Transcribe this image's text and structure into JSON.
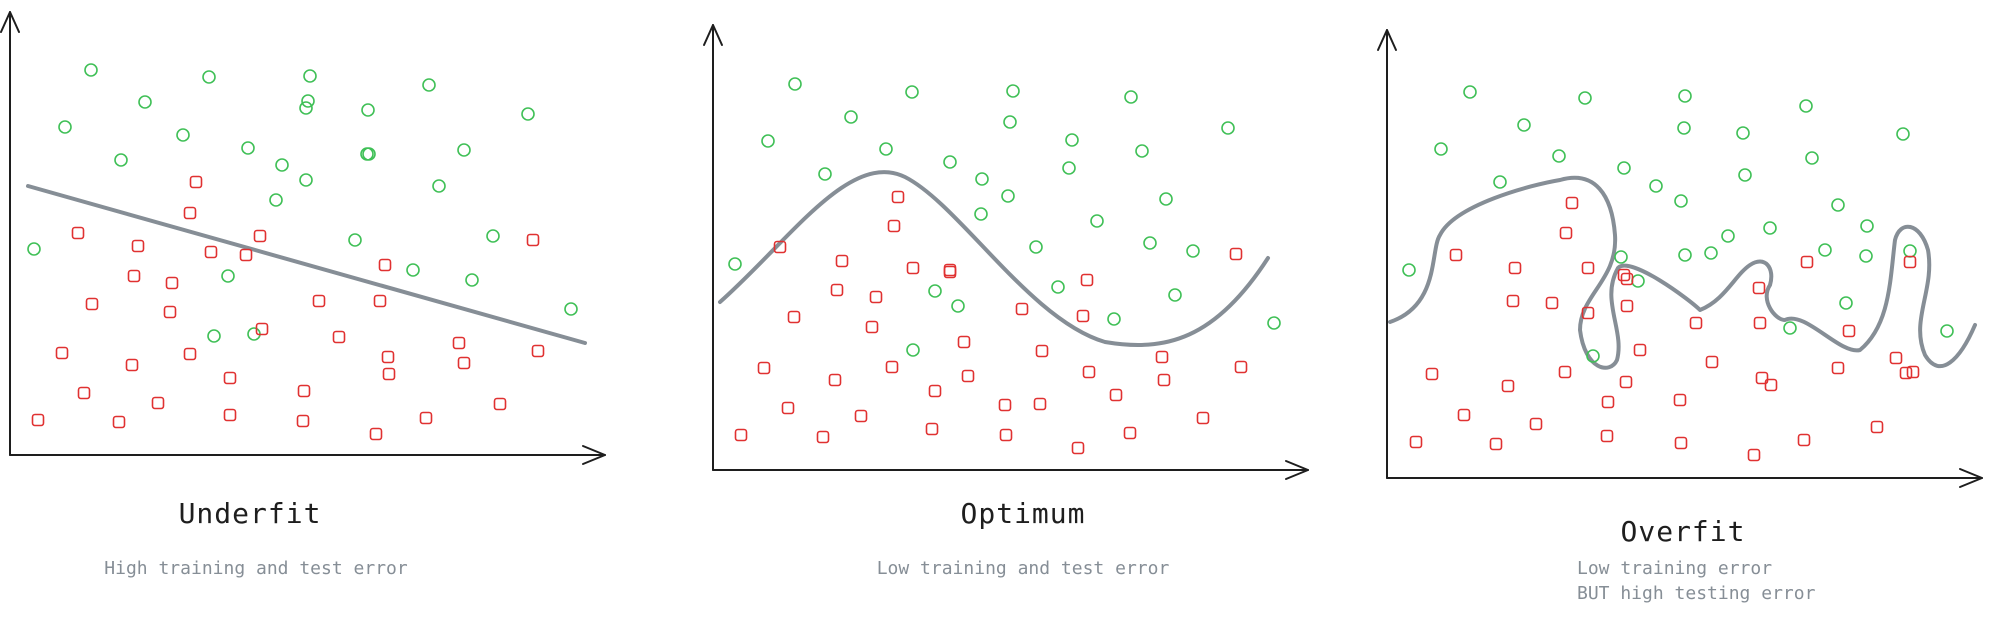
{
  "colors": {
    "axis": "#1e1e1e",
    "boundary": "#868e96",
    "class_a": "#40c057",
    "class_b": "#e03131",
    "title": "#1e1e1e",
    "caption": "#868e96"
  },
  "panels": [
    {
      "id": "underfit",
      "title": "Underfit",
      "caption_lines": [
        "High training and test error"
      ],
      "class_a_points": [
        [
          91,
          70
        ],
        [
          145,
          102
        ],
        [
          209,
          77
        ],
        [
          310,
          76
        ],
        [
          65,
          127
        ],
        [
          121,
          160
        ],
        [
          183,
          135
        ],
        [
          248,
          148
        ],
        [
          282,
          165
        ],
        [
          306,
          108
        ],
        [
          368,
          110
        ],
        [
          429,
          85
        ],
        [
          439,
          186
        ],
        [
          464,
          150
        ],
        [
          493,
          236
        ],
        [
          306,
          180
        ],
        [
          276,
          200
        ],
        [
          228,
          276
        ],
        [
          34,
          249
        ],
        [
          254,
          334
        ],
        [
          413,
          270
        ],
        [
          355,
          240
        ],
        [
          472,
          280
        ],
        [
          369,
          154
        ],
        [
          528,
          114
        ],
        [
          571,
          309
        ],
        [
          308,
          101
        ],
        [
          214,
          336
        ],
        [
          367,
          154
        ]
      ],
      "class_b_points": [
        [
          78,
          233
        ],
        [
          138,
          246
        ],
        [
          190,
          213
        ],
        [
          134,
          276
        ],
        [
          172,
          283
        ],
        [
          211,
          252
        ],
        [
          92,
          304
        ],
        [
          260,
          236
        ],
        [
          170,
          312
        ],
        [
          246,
          255
        ],
        [
          533,
          240
        ],
        [
          385,
          265
        ],
        [
          380,
          301
        ],
        [
          319,
          301
        ],
        [
          62,
          353
        ],
        [
          132,
          365
        ],
        [
          190,
          354
        ],
        [
          262,
          329
        ],
        [
          339,
          337
        ],
        [
          388,
          357
        ],
        [
          459,
          343
        ],
        [
          84,
          393
        ],
        [
          158,
          403
        ],
        [
          230,
          378
        ],
        [
          304,
          391
        ],
        [
          389,
          374
        ],
        [
          464,
          363
        ],
        [
          38,
          420
        ],
        [
          119,
          422
        ],
        [
          230,
          415
        ],
        [
          303,
          421
        ],
        [
          376,
          434
        ],
        [
          426,
          418
        ],
        [
          500,
          404
        ],
        [
          538,
          351
        ],
        [
          196,
          182
        ]
      ],
      "boundary_style": "underfit"
    },
    {
      "id": "optimum",
      "title": "Optimum",
      "caption_lines": [
        "Low training and test error"
      ],
      "class_a_points": [
        [
          795,
          84
        ],
        [
          768,
          141
        ],
        [
          851,
          117
        ],
        [
          912,
          92
        ],
        [
          1013,
          91
        ],
        [
          886,
          149
        ],
        [
          825,
          174
        ],
        [
          950,
          162
        ],
        [
          982,
          179
        ],
        [
          1008,
          196
        ],
        [
          1072,
          140
        ],
        [
          1010,
          122
        ],
        [
          1069,
          168
        ],
        [
          1131,
          97
        ],
        [
          1142,
          151
        ],
        [
          1166,
          199
        ],
        [
          1228,
          128
        ],
        [
          735,
          264
        ],
        [
          981,
          214
        ],
        [
          1036,
          247
        ],
        [
          1150,
          243
        ],
        [
          1193,
          251
        ],
        [
          1097,
          221
        ],
        [
          935,
          291
        ],
        [
          958,
          306
        ],
        [
          1058,
          287
        ],
        [
          1114,
          319
        ],
        [
          1175,
          295
        ],
        [
          1274,
          323
        ],
        [
          913,
          350
        ]
      ],
      "class_b_points": [
        [
          898,
          197
        ],
        [
          894,
          226
        ],
        [
          780,
          247
        ],
        [
          842,
          261
        ],
        [
          913,
          268
        ],
        [
          950,
          272
        ],
        [
          1087,
          280
        ],
        [
          837,
          290
        ],
        [
          876,
          297
        ],
        [
          950,
          270
        ],
        [
          794,
          317
        ],
        [
          872,
          327
        ],
        [
          1022,
          309
        ],
        [
          1083,
          316
        ],
        [
          1236,
          254
        ],
        [
          964,
          342
        ],
        [
          1042,
          351
        ],
        [
          1162,
          357
        ],
        [
          764,
          368
        ],
        [
          835,
          380
        ],
        [
          892,
          367
        ],
        [
          968,
          376
        ],
        [
          1089,
          372
        ],
        [
          1164,
          380
        ],
        [
          1040,
          404
        ],
        [
          1116,
          395
        ],
        [
          935,
          391
        ],
        [
          1005,
          405
        ],
        [
          788,
          408
        ],
        [
          861,
          416
        ],
        [
          1203,
          418
        ],
        [
          741,
          435
        ],
        [
          823,
          437
        ],
        [
          932,
          429
        ],
        [
          1006,
          435
        ],
        [
          1078,
          448
        ],
        [
          1130,
          433
        ],
        [
          1241,
          367
        ]
      ],
      "boundary_style": "optimum"
    },
    {
      "id": "overfit",
      "title": "Overfit",
      "caption_lines": [
        "Low training error",
        "BUT high testing error"
      ],
      "class_a_points": [
        [
          1470,
          92
        ],
        [
          1585,
          98
        ],
        [
          1685,
          96
        ],
        [
          1524,
          125
        ],
        [
          1441,
          149
        ],
        [
          1559,
          156
        ],
        [
          1500,
          182
        ],
        [
          1624,
          168
        ],
        [
          1684,
          128
        ],
        [
          1743,
          133
        ],
        [
          1806,
          106
        ],
        [
          1812,
          158
        ],
        [
          1903,
          134
        ],
        [
          1656,
          186
        ],
        [
          1681,
          201
        ],
        [
          1745,
          175
        ],
        [
          1838,
          205
        ],
        [
          1770,
          228
        ],
        [
          1825,
          250
        ],
        [
          1910,
          251
        ],
        [
          1866,
          256
        ],
        [
          1846,
          303
        ],
        [
          1947,
          331
        ],
        [
          1790,
          328
        ],
        [
          1711,
          253
        ],
        [
          1685,
          255
        ],
        [
          1728,
          236
        ],
        [
          1621,
          257
        ],
        [
          1638,
          281
        ],
        [
          1593,
          356
        ],
        [
          1409,
          270
        ],
        [
          1867,
          226
        ]
      ],
      "class_b_points": [
        [
          1572,
          203
        ],
        [
          1566,
          233
        ],
        [
          1456,
          255
        ],
        [
          1515,
          268
        ],
        [
          1588,
          268
        ],
        [
          1624,
          275
        ],
        [
          1513,
          301
        ],
        [
          1552,
          303
        ],
        [
          1588,
          313
        ],
        [
          1627,
          279
        ],
        [
          1627,
          306
        ],
        [
          1759,
          288
        ],
        [
          1807,
          262
        ],
        [
          1910,
          262
        ],
        [
          1696,
          323
        ],
        [
          1760,
          323
        ],
        [
          1849,
          331
        ],
        [
          1432,
          374
        ],
        [
          1508,
          386
        ],
        [
          1565,
          372
        ],
        [
          1640,
          350
        ],
        [
          1626,
          382
        ],
        [
          1712,
          362
        ],
        [
          1762,
          378
        ],
        [
          1838,
          368
        ],
        [
          1906,
          373
        ],
        [
          1464,
          415
        ],
        [
          1536,
          424
        ],
        [
          1608,
          402
        ],
        [
          1680,
          400
        ],
        [
          1771,
          385
        ],
        [
          1896,
          358
        ],
        [
          1416,
          442
        ],
        [
          1496,
          444
        ],
        [
          1607,
          436
        ],
        [
          1681,
          443
        ],
        [
          1754,
          455
        ],
        [
          1804,
          440
        ],
        [
          1877,
          427
        ],
        [
          1913,
          372
        ]
      ],
      "boundary_style": "overfit"
    }
  ]
}
